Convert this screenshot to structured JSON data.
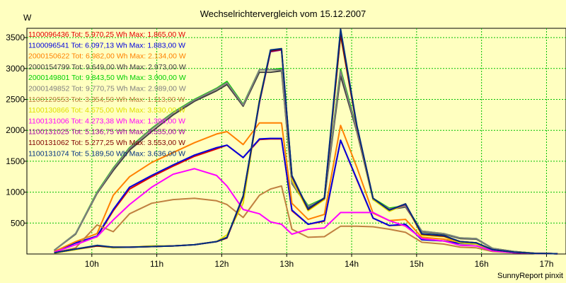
{
  "chart_data": {
    "type": "line",
    "title": "Wechselrichtervergleich vom 15.12.2007",
    "ylabel": "W",
    "ylim": [
      0,
      3650
    ],
    "xlim": [
      9.0,
      17.3
    ],
    "yticks": [
      500,
      1000,
      1500,
      2000,
      2500,
      3000,
      3500
    ],
    "xticks": [
      {
        "value": 10,
        "label": "10h"
      },
      {
        "value": 11,
        "label": "11h"
      },
      {
        "value": 12,
        "label": "12h"
      },
      {
        "value": 13,
        "label": "13h"
      },
      {
        "value": 14,
        "label": "14h"
      },
      {
        "value": 15,
        "label": "15h"
      },
      {
        "value": 16,
        "label": "16h"
      },
      {
        "value": 17,
        "label": "17h"
      }
    ],
    "grid": true,
    "grid_color": "#00c000",
    "background_color": "#ffffc0",
    "legend_position": "top-left",
    "credit": "SunnyReport pinxit",
    "x": [
      9.42,
      9.75,
      10.08,
      10.33,
      10.58,
      10.92,
      11.25,
      11.58,
      11.92,
      12.08,
      12.33,
      12.58,
      12.75,
      12.92,
      13.08,
      13.33,
      13.58,
      13.83,
      14.08,
      14.33,
      14.58,
      14.83,
      15.08,
      15.42,
      15.67,
      15.92,
      16.17,
      16.5,
      16.83,
      17.17
    ],
    "series": [
      {
        "name": "1100096436",
        "legend": "1100096436 Tot: 5.970,25 Wh Max: 1.865,00 W",
        "color": "#e00000",
        "values": [
          40,
          180,
          280,
          700,
          1050,
          1250,
          1420,
          1580,
          1700,
          1760,
          1560,
          1850,
          1860,
          1860,
          700,
          480,
          530,
          1840,
          1200,
          580,
          460,
          470,
          240,
          210,
          170,
          160,
          60,
          30,
          10,
          5
        ]
      },
      {
        "name": "1100096541",
        "legend": "1100096541 Tot: 6.097,13 Wh Max: 1.883,00 W",
        "color": "#0000e0",
        "values": [
          40,
          180,
          290,
          720,
          1080,
          1270,
          1440,
          1600,
          1720,
          1760,
          1560,
          1860,
          1870,
          1870,
          710,
          480,
          540,
          1840,
          1210,
          580,
          460,
          480,
          230,
          210,
          170,
          160,
          60,
          30,
          10,
          5
        ]
      },
      {
        "name": "2000150622",
        "legend": "2000150622 Tot: 6.982,00 Wh Max: 2.134,00 W",
        "color": "#ff8000",
        "values": [
          40,
          200,
          330,
          950,
          1250,
          1480,
          1640,
          1800,
          1940,
          1980,
          1770,
          2120,
          2120,
          2120,
          820,
          560,
          640,
          2080,
          1400,
          660,
          540,
          560,
          270,
          240,
          190,
          180,
          70,
          30,
          10,
          5
        ]
      },
      {
        "name": "2000154799",
        "legend": "2000154799 Tot: 9.649,00 Wh Max: 2.973,00 W",
        "color": "#404040",
        "values": [
          60,
          320,
          980,
          1350,
          1680,
          1980,
          2250,
          2470,
          2640,
          2740,
          2390,
          2940,
          2940,
          2960,
          1140,
          760,
          880,
          2880,
          1980,
          880,
          720,
          760,
          360,
          320,
          250,
          240,
          90,
          40,
          10,
          5
        ]
      },
      {
        "name": "2000149801",
        "legend": "2000149801 Tot: 9.843,50 Wh Max: 3.000,00 W",
        "color": "#00d000",
        "values": [
          60,
          330,
          1000,
          1390,
          1720,
          2030,
          2290,
          2500,
          2680,
          2790,
          2420,
          2980,
          2980,
          3000,
          1160,
          780,
          900,
          2990,
          2020,
          900,
          740,
          780,
          370,
          330,
          260,
          250,
          90,
          40,
          10,
          5
        ]
      },
      {
        "name": "2000149852",
        "legend": "2000149852 Tot: 9.770,75 Wh Max: 2.989,00 W",
        "color": "#808080",
        "values": [
          60,
          330,
          990,
          1380,
          1710,
          2020,
          2280,
          2490,
          2670,
          2770,
          2410,
          2980,
          2980,
          2980,
          1150,
          770,
          890,
          2960,
          2000,
          890,
          730,
          770,
          370,
          330,
          260,
          250,
          90,
          40,
          10,
          5
        ]
      },
      {
        "name": "1100129553",
        "legend": "1100129553 Tot: 3.354,50 Wh Max: 1.113,00 W",
        "color": "#c08040",
        "values": [
          20,
          100,
          470,
          360,
          650,
          820,
          880,
          900,
          860,
          800,
          590,
          950,
          1050,
          1100,
          400,
          270,
          280,
          450,
          450,
          440,
          400,
          350,
          190,
          160,
          110,
          100,
          40,
          20,
          10,
          5
        ]
      },
      {
        "name": "1100130866",
        "legend": "1100130866 Tot: 4.575,00 Wh Max: 3.530,00 W",
        "color": "#e0e000",
        "values": [
          15,
          70,
          130,
          100,
          110,
          130,
          130,
          150,
          200,
          310,
          820,
          2500,
          3280,
          3320,
          1200,
          700,
          880,
          3530,
          2050,
          880,
          690,
          800,
          300,
          280,
          180,
          160,
          60,
          30,
          10,
          5
        ]
      },
      {
        "name": "1100131006",
        "legend": "1100131006 Tot: 4.273,38 Wh Max: 1.390,00 W",
        "color": "#ff00ff",
        "values": [
          30,
          150,
          280,
          550,
          800,
          1080,
          1290,
          1380,
          1270,
          1100,
          720,
          650,
          520,
          480,
          320,
          400,
          420,
          670,
          670,
          670,
          540,
          450,
          250,
          210,
          140,
          130,
          50,
          20,
          10,
          5
        ]
      },
      {
        "name": "1100131025",
        "legend": "1100131025 Tot: 5.136,75 Wh Max: 3.555,00 W",
        "color": "#a000a0",
        "values": [
          20,
          80,
          130,
          110,
          110,
          120,
          130,
          150,
          200,
          260,
          920,
          2450,
          3270,
          3300,
          1250,
          720,
          900,
          3555,
          2060,
          900,
          710,
          800,
          320,
          290,
          200,
          180,
          70,
          30,
          10,
          5
        ]
      },
      {
        "name": "1100131062",
        "legend": "1100131062 Tot: 5.277,25 Wh Max: 3.553,00 W",
        "color": "#800000",
        "values": [
          20,
          80,
          130,
          110,
          110,
          120,
          130,
          150,
          200,
          260,
          930,
          2460,
          3280,
          3310,
          1260,
          720,
          900,
          3553,
          2070,
          900,
          710,
          810,
          320,
          290,
          200,
          180,
          70,
          30,
          10,
          5
        ]
      },
      {
        "name": "1100131074",
        "legend": "1100131074 Tot: 5.189,50 Wh Max: 3.636,00 W",
        "color": "#003080",
        "values": [
          20,
          80,
          140,
          110,
          110,
          120,
          130,
          150,
          200,
          270,
          940,
          2470,
          3300,
          3320,
          1270,
          730,
          910,
          3636,
          2080,
          900,
          710,
          810,
          330,
          300,
          200,
          180,
          70,
          30,
          10,
          5
        ]
      }
    ]
  }
}
